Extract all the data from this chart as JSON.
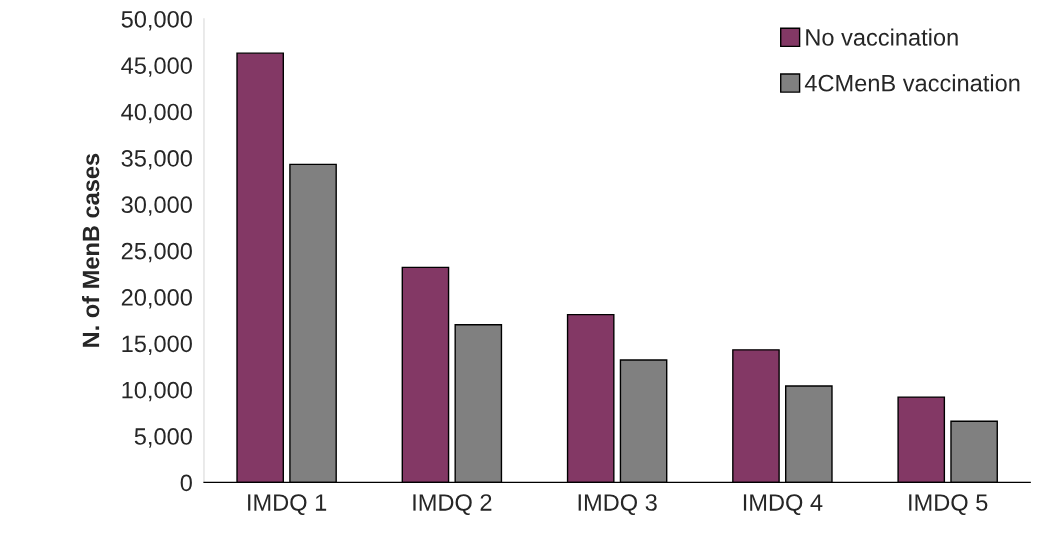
{
  "chart_data": {
    "type": "bar",
    "ylabel": "N. of MenB cases",
    "categories": [
      "IMDQ 1",
      "IMDQ 2",
      "IMDQ 3",
      "IMDQ 4",
      "IMDQ 5"
    ],
    "series": [
      {
        "name": "No vaccination",
        "color": "#833865",
        "values": [
          46300,
          23200,
          18100,
          14300,
          9200
        ]
      },
      {
        "name": "4CMenB vaccination",
        "color": "#808080",
        "values": [
          34300,
          17000,
          13200,
          10400,
          6600
        ]
      }
    ],
    "ylim": [
      0,
      50000
    ],
    "yticks": [
      {
        "value": 0,
        "label": "0"
      },
      {
        "value": 5000,
        "label": "5,000"
      },
      {
        "value": 10000,
        "label": "10,000"
      },
      {
        "value": 15000,
        "label": "15,000"
      },
      {
        "value": 20000,
        "label": "20,000"
      },
      {
        "value": 25000,
        "label": "25,000"
      },
      {
        "value": 30000,
        "label": "30,000"
      },
      {
        "value": 35000,
        "label": "35,000"
      },
      {
        "value": 40000,
        "label": "40,000"
      },
      {
        "value": 45000,
        "label": "45,000"
      },
      {
        "value": 50000,
        "label": "50,000"
      }
    ],
    "legend": "top right",
    "grid": false
  }
}
